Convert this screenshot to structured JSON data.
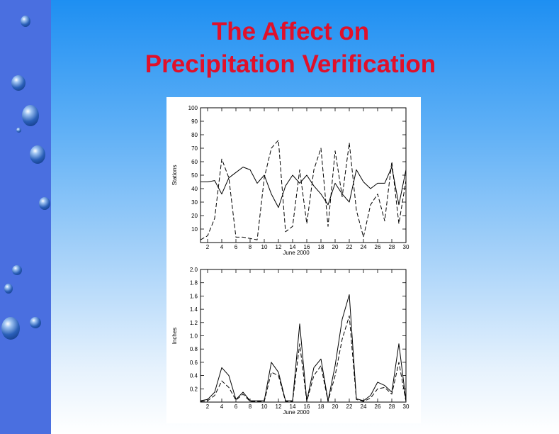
{
  "slide": {
    "title_line1": "The Affect on",
    "title_line2": "Precipitation Verification",
    "accent_color": "#e0102a",
    "sidebar_color": "#4a6fe0",
    "decoration_icon": "water-drop-icon"
  },
  "chart_data": [
    {
      "type": "line",
      "ylabel": "Stations",
      "xlabel": "June 2000",
      "xlim": [
        1,
        30
      ],
      "ylim": [
        0,
        100
      ],
      "yticks": [
        10,
        20,
        30,
        40,
        50,
        60,
        70,
        80,
        90,
        100
      ],
      "yticklabels": [
        "10",
        "20",
        "30",
        "40",
        "50",
        "60",
        "70",
        "80",
        "90",
        "100"
      ],
      "xticks": [
        2,
        4,
        6,
        8,
        10,
        12,
        14,
        16,
        18,
        20,
        22,
        24,
        26,
        28,
        30
      ],
      "xticklabels": [
        "2",
        "4",
        "6",
        "8",
        "10",
        "12",
        "14",
        "16",
        "18",
        "20",
        "22",
        "24",
        "26",
        "28",
        "30"
      ],
      "series": [
        {
          "x": [
            1,
            2,
            3,
            4,
            5,
            6,
            7,
            8,
            9,
            10,
            11,
            12,
            13,
            14,
            15,
            16,
            17,
            18,
            19,
            20,
            21,
            22,
            23,
            24,
            25,
            26,
            27,
            28,
            29,
            30
          ],
          "values": [
            45,
            45,
            46,
            36,
            48,
            52,
            56,
            54,
            44,
            50,
            36,
            26,
            42,
            50,
            44,
            50,
            42,
            36,
            28,
            44,
            36,
            30,
            54,
            45,
            40,
            44,
            44,
            56,
            28,
            54
          ]
        },
        {
          "x": [
            1,
            2,
            3,
            4,
            5,
            6,
            7,
            8,
            9,
            10,
            11,
            12,
            13,
            14,
            15,
            16,
            17,
            18,
            19,
            20,
            21,
            22,
            23,
            24,
            25,
            26,
            27,
            28,
            29,
            30
          ],
          "values": [
            2,
            5,
            18,
            62,
            48,
            4,
            4,
            3,
            2,
            48,
            70,
            76,
            8,
            12,
            54,
            14,
            54,
            70,
            12,
            68,
            34,
            74,
            24,
            4,
            28,
            36,
            16,
            60,
            14,
            46
          ]
        }
      ]
    },
    {
      "type": "line",
      "ylabel": "Inches",
      "xlabel": "June 2000",
      "xlim": [
        1,
        30
      ],
      "ylim": [
        0,
        2.0
      ],
      "yticks": [
        0.2,
        0.4,
        0.6,
        0.8,
        1.0,
        1.2,
        1.4,
        1.6,
        1.8,
        2.0
      ],
      "yticklabels": [
        "0.2",
        "0.4",
        "0.6",
        "0.8",
        "1.0",
        "1.2",
        "1.4",
        "1.6",
        "1.8",
        "2.0"
      ],
      "xticks": [
        2,
        4,
        6,
        8,
        10,
        12,
        14,
        16,
        18,
        20,
        22,
        24,
        26,
        28,
        30
      ],
      "xticklabels": [
        "2",
        "4",
        "6",
        "8",
        "10",
        "12",
        "14",
        "16",
        "18",
        "20",
        "22",
        "24",
        "26",
        "28",
        "30"
      ],
      "series": [
        {
          "x": [
            1,
            2,
            3,
            4,
            5,
            6,
            7,
            8,
            9,
            10,
            11,
            12,
            13,
            14,
            15,
            16,
            17,
            18,
            19,
            20,
            21,
            22,
            23,
            24,
            25,
            26,
            27,
            28,
            29,
            30
          ],
          "values": [
            0.02,
            0.04,
            0.15,
            0.52,
            0.4,
            0.04,
            0.15,
            0.02,
            0.02,
            0.02,
            0.6,
            0.45,
            0.02,
            0.02,
            1.18,
            0.02,
            0.52,
            0.65,
            0.02,
            0.55,
            1.25,
            1.62,
            0.05,
            0.02,
            0.1,
            0.3,
            0.25,
            0.15,
            0.88,
            0.02
          ]
        },
        {
          "x": [
            1,
            2,
            3,
            4,
            5,
            6,
            7,
            8,
            9,
            10,
            11,
            12,
            13,
            14,
            15,
            16,
            17,
            18,
            19,
            20,
            21,
            22,
            23,
            24,
            25,
            26,
            27,
            28,
            29,
            30
          ],
          "values": [
            0.01,
            0.02,
            0.1,
            0.32,
            0.22,
            0.03,
            0.12,
            0.01,
            0.01,
            0.01,
            0.45,
            0.4,
            0.01,
            0.01,
            0.88,
            0.01,
            0.4,
            0.55,
            0.01,
            0.4,
            0.95,
            1.3,
            0.04,
            0.01,
            0.06,
            0.2,
            0.22,
            0.12,
            0.6,
            0.01
          ]
        }
      ]
    }
  ]
}
